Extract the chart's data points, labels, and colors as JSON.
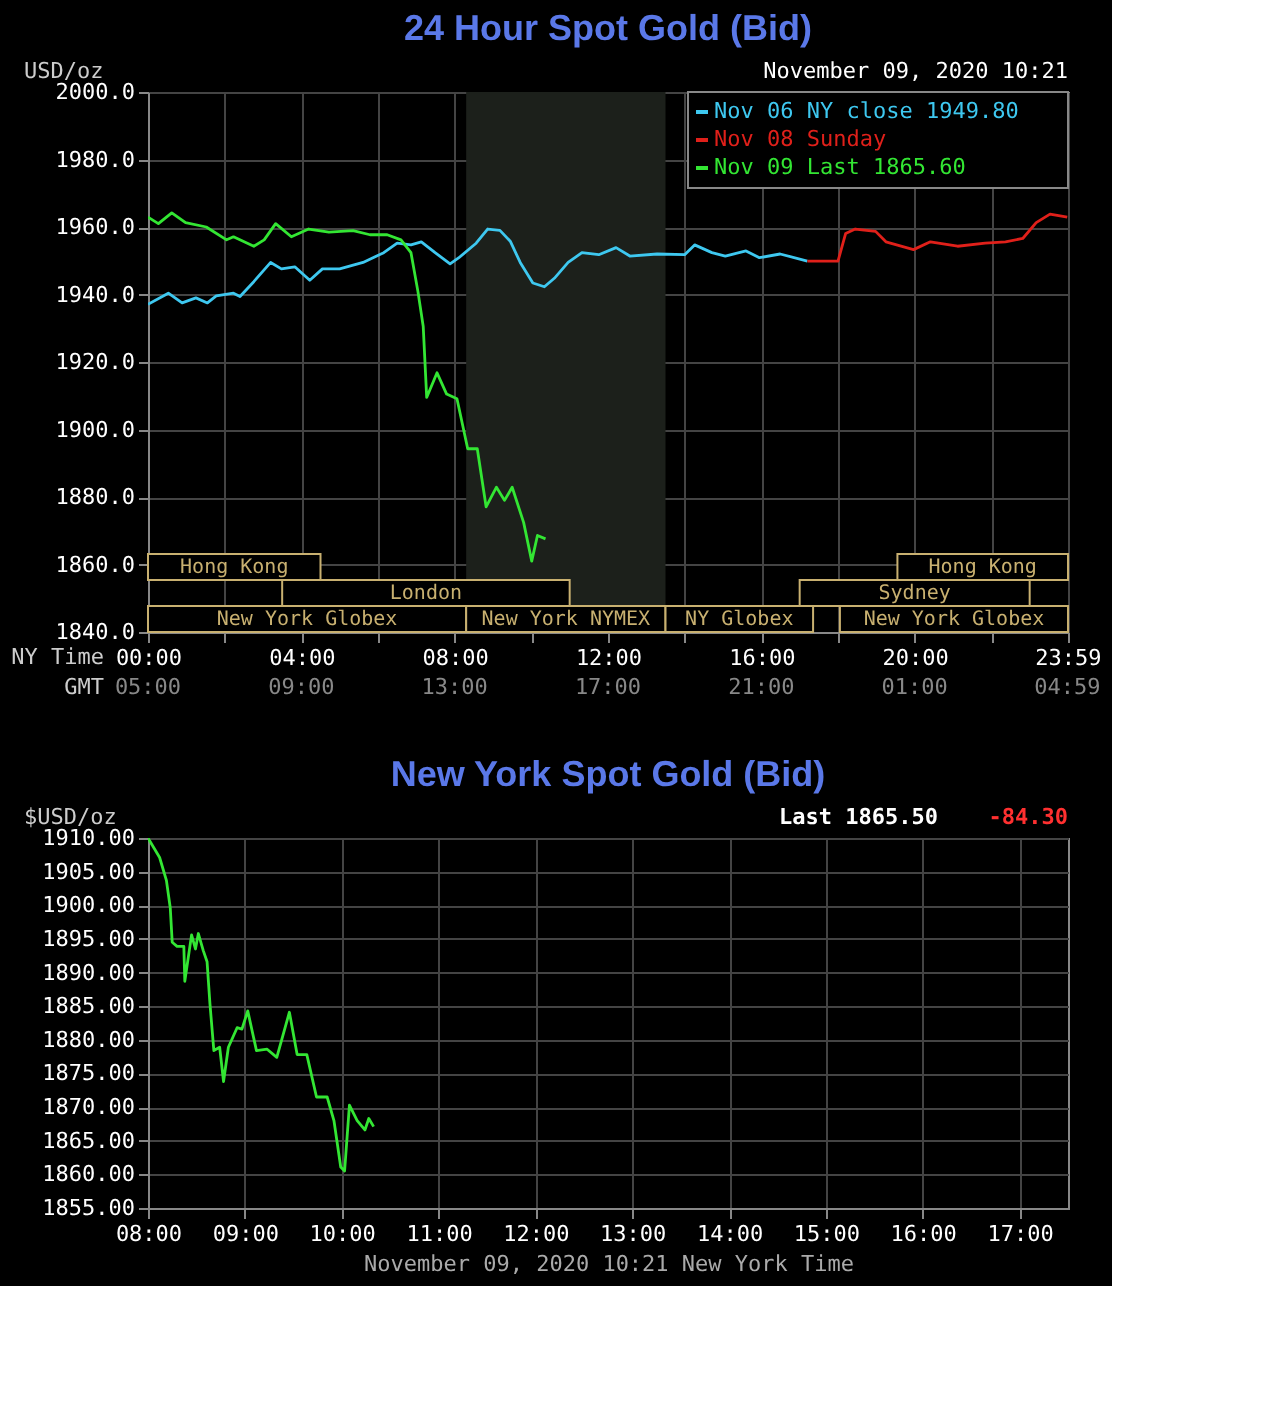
{
  "chart_data": [
    {
      "type": "line",
      "title": "24 Hour Spot Gold (Bid)",
      "ylabel": "USD/oz",
      "xlabel": "NY Time",
      "x2label": "GMT",
      "xlim": [
        0,
        24
      ],
      "xticks": [
        {
          "value": 0,
          "label": "00:00"
        },
        {
          "value": 2,
          "label": null
        },
        {
          "value": 4,
          "label": "04:00"
        },
        {
          "value": 6,
          "label": null
        },
        {
          "value": 8,
          "label": "08:00"
        },
        {
          "value": 10,
          "label": null
        },
        {
          "value": 12,
          "label": "12:00"
        },
        {
          "value": 14,
          "label": null
        },
        {
          "value": 16,
          "label": "16:00"
        },
        {
          "value": 18,
          "label": null
        },
        {
          "value": 20,
          "label": "20:00"
        },
        {
          "value": 22,
          "label": null
        },
        {
          "value": 23.983,
          "label": "23:59"
        }
      ],
      "x2lim": [
        "2020-11-09T05:00",
        "2020-11-10T05:00"
      ],
      "x2ticks": [
        {
          "value": "2020-11-09T05:00",
          "label": "05:00"
        },
        {
          "value": "2020-11-09T09:00",
          "label": "09:00"
        },
        {
          "value": "2020-11-09T13:00",
          "label": "13:00"
        },
        {
          "value": "2020-11-09T17:00",
          "label": "17:00"
        },
        {
          "value": "2020-11-09T21:00",
          "label": "21:00"
        },
        {
          "value": "2020-11-10T01:00",
          "label": "01:00"
        },
        {
          "value": "2020-11-10T04:59",
          "label": "04:59"
        }
      ],
      "ylim": [
        1840,
        2000
      ],
      "yticks": [
        {
          "value": 1840,
          "label": "1840.0"
        },
        {
          "value": 1860,
          "label": "1860.0"
        },
        {
          "value": 1880,
          "label": "1880.0"
        },
        {
          "value": 1900,
          "label": "1900.0"
        },
        {
          "value": 1920,
          "label": "1920.0"
        },
        {
          "value": 1940,
          "label": "1940.0"
        },
        {
          "value": 1960,
          "label": "1960.0"
        },
        {
          "value": 1980,
          "label": "1980.0"
        },
        {
          "value": 2000,
          "label": "2000.0"
        }
      ],
      "grid": true,
      "legend": "top right",
      "series": [
        {
          "name": "Nov 06 NY close 1949.80",
          "color": "#3ec8f0",
          "x": [
            0,
            0.53,
            0.89,
            1.25,
            1.55,
            1.78,
            2.23,
            2.4,
            2.76,
            3.2,
            3.48,
            3.83,
            4.22,
            4.55,
            5.0,
            5.61,
            6.15,
            6.5,
            6.86,
            7.13,
            7.49,
            7.88,
            8.11,
            8.56,
            8.86,
            9.18,
            9.45,
            9.71,
            10.04,
            10.34,
            10.6,
            10.96,
            11.32,
            11.76,
            12.21,
            12.57,
            13.28,
            14.0,
            14.26,
            14.71,
            15.06,
            15.6,
            15.95,
            16.49,
            17.2
          ],
          "values": [
            1937.1,
            1940.4,
            1937.5,
            1939,
            1937.5,
            1939.6,
            1940.4,
            1939.4,
            1943.8,
            1949.5,
            1947.6,
            1948.2,
            1944.2,
            1947.6,
            1947.6,
            1949.5,
            1952.4,
            1955.2,
            1954.7,
            1955.6,
            1952.4,
            1949.1,
            1950.9,
            1955.2,
            1959.4,
            1959,
            1955.8,
            1949.5,
            1943.4,
            1942.3,
            1944.8,
            1949.5,
            1952.4,
            1951.8,
            1953.9,
            1951.4,
            1952,
            1951.8,
            1954.7,
            1952.4,
            1951.4,
            1952.9,
            1950.9,
            1952,
            1949.9
          ]
        },
        {
          "name": "Nov 08 Sunday",
          "color": "#e0201a",
          "x": [
            17.2,
            18.0,
            18.2,
            18.45,
            18.98,
            19.25,
            19.97,
            20.41,
            21.12,
            21.84,
            22.37,
            22.82,
            23.17,
            23.53,
            23.98
          ],
          "values": [
            1949.9,
            1949.9,
            1958.1,
            1959.4,
            1958.7,
            1955.6,
            1953.3,
            1955.6,
            1954.3,
            1955.2,
            1955.6,
            1956.6,
            1961.3,
            1963.8,
            1962.9
          ]
        },
        {
          "name": "Nov 09 Last 1865.60",
          "color": "#33e633",
          "x": [
            0,
            0.27,
            0.62,
            0.98,
            1.52,
            2.05,
            2.23,
            2.76,
            3.03,
            3.33,
            3.74,
            4.19,
            4.72,
            5.35,
            5.79,
            6.24,
            6.6,
            6.86,
            7.04,
            7.18,
            7.27,
            7.54,
            7.79,
            8.06,
            8.34,
            8.59,
            8.82,
            9.09,
            9.3,
            9.5,
            9.8,
            10.01,
            10.16,
            10.37
          ],
          "values": [
            1962.9,
            1961,
            1964.2,
            1961.3,
            1960,
            1956.2,
            1957.1,
            1954.3,
            1956.2,
            1961,
            1957.1,
            1959.4,
            1958.5,
            1958.9,
            1957.7,
            1957.7,
            1956.2,
            1952.4,
            1941,
            1930.5,
            1909.5,
            1916.8,
            1910.5,
            1909.1,
            1894.3,
            1894.3,
            1877.1,
            1882.9,
            1879,
            1882.9,
            1872.4,
            1861,
            1868.6,
            1867.6
          ]
        }
      ],
      "bands": [
        {
          "axis": "x",
          "from": 0,
          "to": 8.3,
          "label": "New York Globex"
        },
        {
          "axis": "x",
          "from": 8.3,
          "to": 13.5,
          "label": "New York NYMEX",
          "color": "#1c201b"
        },
        {
          "axis": "x",
          "from": 13.5,
          "to": 17.35,
          "label": "NY Globex"
        },
        {
          "axis": "x",
          "from": 18.05,
          "to": 24,
          "label": "New York Globex"
        },
        {
          "axis": "x",
          "from": 3.5,
          "to": 11.0,
          "label": "London"
        },
        {
          "axis": "x",
          "from": 17.0,
          "to": 23.0,
          "label": "Sydney"
        },
        {
          "axis": "x",
          "from": 0,
          "to": 4.5,
          "label": "Hong Kong"
        },
        {
          "axis": "x",
          "from": 19.55,
          "to": 24,
          "label": "Hong Kong"
        }
      ],
      "annotations": [
        "November 09, 2020 10:21"
      ]
    },
    {
      "type": "line",
      "title": "New York Spot Gold (Bid)",
      "ylabel": "$USD/oz",
      "xlabel": "November 09, 2020 10:21 New York Time",
      "xlim": [
        8,
        17.5
      ],
      "xticks": [
        {
          "value": 8,
          "label": "08:00"
        },
        {
          "value": 9,
          "label": "09:00"
        },
        {
          "value": 10,
          "label": "10:00"
        },
        {
          "value": 11,
          "label": "11:00"
        },
        {
          "value": 12,
          "label": "12:00"
        },
        {
          "value": 13,
          "label": "13:00"
        },
        {
          "value": 14,
          "label": "14:00"
        },
        {
          "value": 15,
          "label": "15:00"
        },
        {
          "value": 16,
          "label": "16:00"
        },
        {
          "value": 17,
          "label": "17:00"
        }
      ],
      "ylim": [
        1855,
        1910
      ],
      "yticks": [
        {
          "value": 1855,
          "label": "1855.00"
        },
        {
          "value": 1860,
          "label": "1860.00"
        },
        {
          "value": 1865,
          "label": "1865.00"
        },
        {
          "value": 1870,
          "label": "1870.00"
        },
        {
          "value": 1875,
          "label": "1875.00"
        },
        {
          "value": 1880,
          "label": "1880.00"
        },
        {
          "value": 1885,
          "label": "1885.00"
        },
        {
          "value": 1890,
          "label": "1890.00"
        },
        {
          "value": 1895,
          "label": "1895.00"
        },
        {
          "value": 1900,
          "label": "1900.00"
        },
        {
          "value": 1905,
          "label": "1905.00"
        },
        {
          "value": 1910,
          "label": "1910.00"
        }
      ],
      "grid": true,
      "series": [
        {
          "color": "#33e633",
          "x": [
            8,
            8.12,
            8.19,
            8.23,
            8.25,
            8.3,
            8.37,
            8.38,
            8.45,
            8.49,
            8.52,
            8.57,
            8.61,
            8.64,
            8.68,
            8.74,
            8.78,
            8.83,
            8.92,
            8.97,
            9.03,
            9.12,
            9.23,
            9.33,
            9.46,
            9.54,
            9.64,
            9.74,
            9.85,
            9.92,
            9.99,
            10.03,
            10.08,
            10.16,
            10.24,
            10.28,
            10.33
          ],
          "values": [
            1910,
            1907.1,
            1903.7,
            1899.6,
            1894.5,
            1893.9,
            1893.9,
            1888.7,
            1895.6,
            1893.5,
            1895.8,
            1893.3,
            1891.6,
            1885.3,
            1878.4,
            1878.9,
            1873.8,
            1878.9,
            1881.8,
            1881.6,
            1884.3,
            1878.4,
            1878.6,
            1877.4,
            1884.1,
            1877.8,
            1877.8,
            1871.5,
            1871.5,
            1868,
            1861.1,
            1860.5,
            1870.3,
            1868,
            1866.6,
            1868.3,
            1867.1
          ]
        }
      ],
      "annotations": [
        "Last 1865.50",
        "-84.30"
      ]
    }
  ]
}
